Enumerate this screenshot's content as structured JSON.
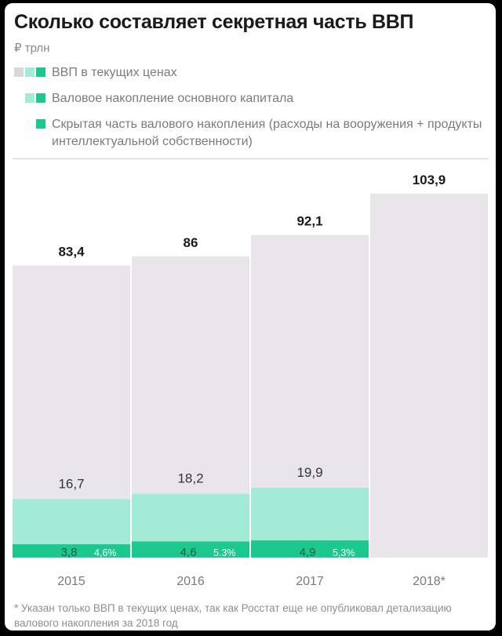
{
  "title": "Сколько составляет секретная часть ВВП",
  "unit": "₽ трлн",
  "legend": [
    {
      "label": "ВВП в текущих ценах",
      "swatches": [
        "#d9d7da",
        "#a2ecd7",
        "#1dc88f"
      ]
    },
    {
      "label": "Валовое накопление основного капитала",
      "swatches": [
        "#a2ecd7",
        "#1dc88f"
      ]
    },
    {
      "label": "Скрытая часть валового накопления (расходы на вооружения + продукты интеллектуальной собственности)",
      "swatches": [
        "#1dc88f"
      ]
    }
  ],
  "colors": {
    "gdp": "#e8e6e9",
    "capital": "#a2ecd7",
    "hidden": "#1dc88f",
    "text_dark": "#1a1a1a",
    "text_muted": "#7a7a7a",
    "percent_text": "#ffffff"
  },
  "chart_data": {
    "type": "bar",
    "categories": [
      "2015",
      "2016",
      "2017",
      "2018*"
    ],
    "series": [
      {
        "name": "ВВП в текущих ценах",
        "values": [
          83.4,
          86,
          92.1,
          103.9
        ],
        "labels": [
          "83,4",
          "86",
          "92,1",
          "103,9"
        ]
      },
      {
        "name": "Валовое накопление основного капитала",
        "values": [
          16.7,
          18.2,
          19.9,
          null
        ],
        "labels": [
          "16,7",
          "18,2",
          "19,9",
          ""
        ]
      },
      {
        "name": "Скрытая часть валового накопления (расходы на вооружения + продукты интеллектуальной собственности)",
        "values": [
          3.8,
          4.6,
          4.9,
          null
        ],
        "labels": [
          "3,8",
          "4,6",
          "4,9",
          ""
        ]
      }
    ],
    "hidden_share_labels": [
      "4,6%",
      "5.3%",
      "5,3%",
      ""
    ],
    "ylim": [
      0,
      103.9
    ],
    "grid": false
  },
  "footnote": "* Указан только ВВП в текущих ценах, так как Росстат еще не опубликовал детализацию валового накопления за 2018 год"
}
